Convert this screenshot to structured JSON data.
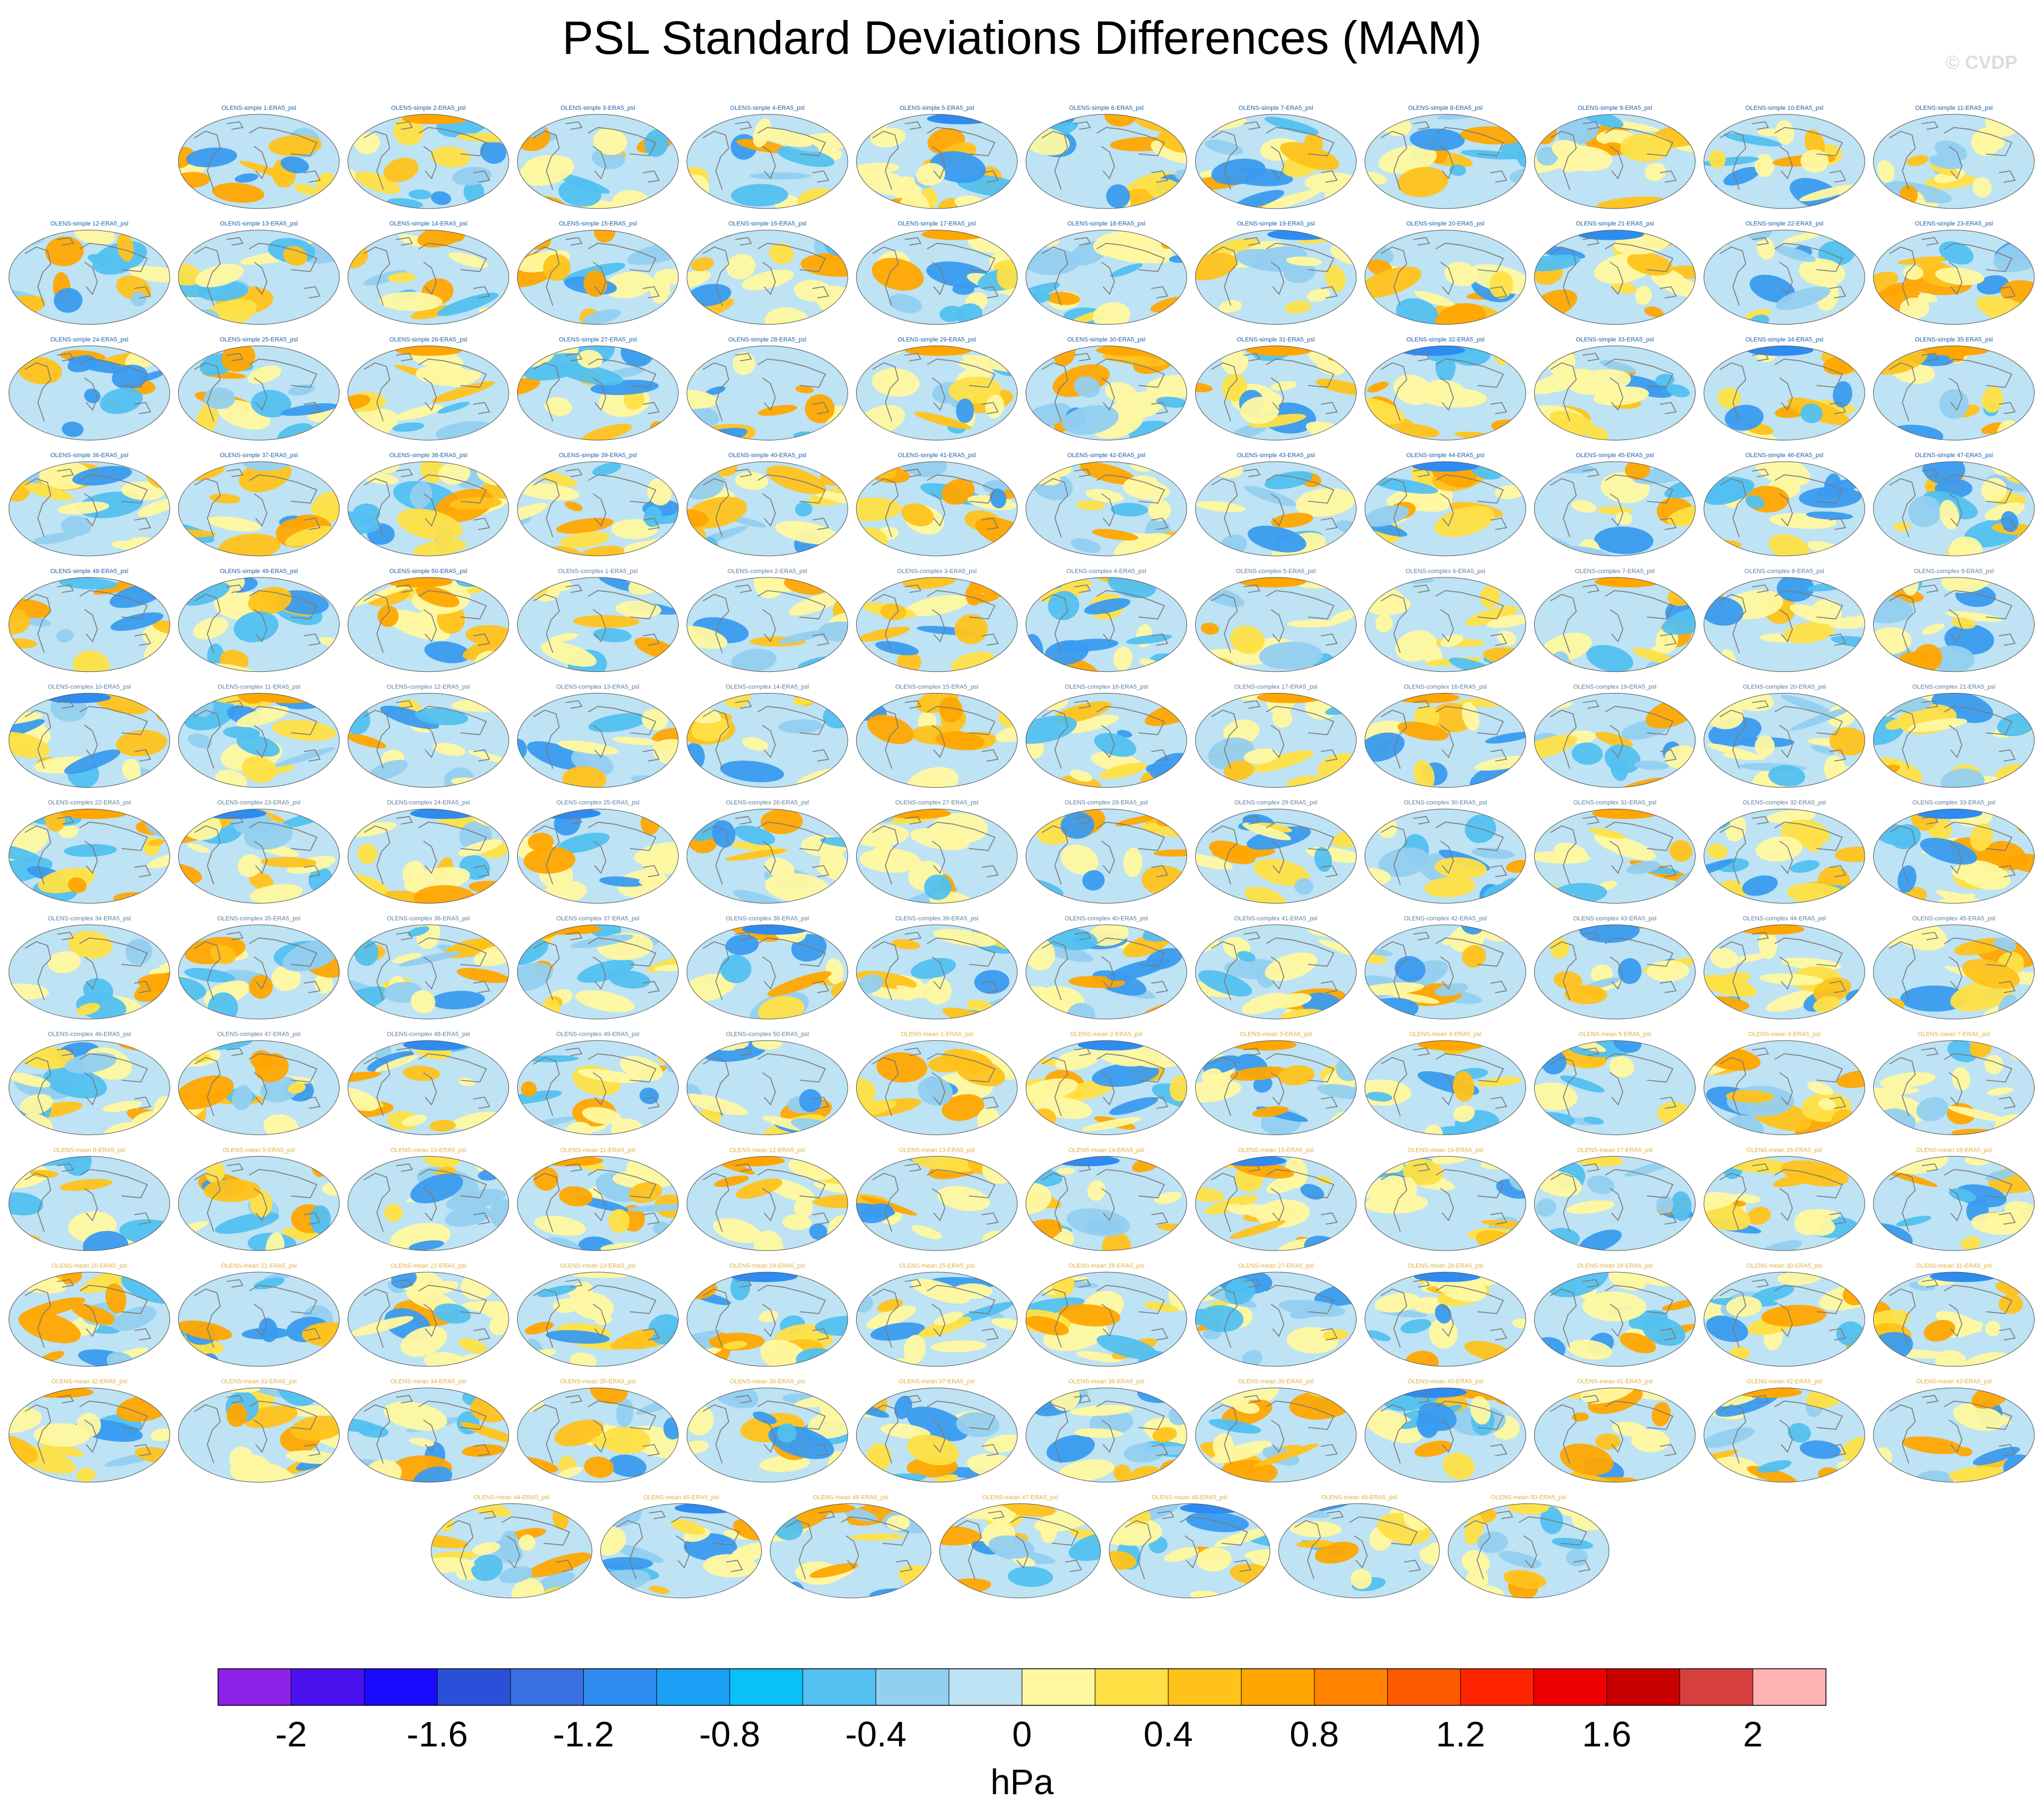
{
  "title": "PSL Standard Deviations Differences (MAM)",
  "watermark": "© CVDP",
  "chart_data": {
    "type": "heatmap",
    "title": "PSL Standard Deviations Differences (MAM)",
    "variable": "PSL",
    "season": "MAM",
    "projection": "global map panels (Robinson-like ellipse)",
    "panel_titles": [
      "OLENS-simple 1-ERA5_psl",
      "OLENS-simple 2-ERA5_psl",
      "OLENS-simple 3-ERA5_psl",
      "OLENS-simple 4-ERA5_psl",
      "OLENS-simple 5-ERA5_psl",
      "OLENS-simple 6-ERA5_psl",
      "OLENS-simple 7-ERA5_psl",
      "OLENS-simple 8-ERA5_psl",
      "OLENS-simple 9-ERA5_psl",
      "OLENS-simple 10-ERA5_psl",
      "OLENS-simple 11-ERA5_psl",
      "OLENS-simple 12-ERA5_psl",
      "OLENS-simple 13-ERA5_psl",
      "OLENS-simple 14-ERA5_psl",
      "OLENS-simple 15-ERA5_psl",
      "OLENS-simple 16-ERA5_psl",
      "OLENS-simple 17-ERA5_psl",
      "OLENS-simple 18-ERA5_psl",
      "OLENS-simple 19-ERA5_psl",
      "OLENS-simple 20-ERA5_psl",
      "OLENS-simple 21-ERA5_psl",
      "OLENS-simple 22-ERA5_psl",
      "OLENS-simple 23-ERA5_psl",
      "OLENS-simple 24-ERA5_psl",
      "OLENS-simple 25-ERA5_psl",
      "OLENS-simple 26-ERA5_psl",
      "OLENS-simple 27-ERA5_psl",
      "OLENS-simple 28-ERA5_psl",
      "OLENS-simple 29-ERA5_psl",
      "OLENS-simple 30-ERA5_psl",
      "OLENS-simple 31-ERA5_psl",
      "OLENS-simple 32-ERA5_psl",
      "OLENS-simple 33-ERA5_psl",
      "OLENS-simple 34-ERA5_psl",
      "OLENS-simple 35-ERA5_psl",
      "OLENS-simple 36-ERA5_psl",
      "OLENS-simple 37-ERA5_psl",
      "OLENS-simple 38-ERA5_psl",
      "OLENS-simple 39-ERA5_psl",
      "OLENS-simple 40-ERA5_psl",
      "OLENS-simple 41-ERA5_psl",
      "OLENS-simple 42-ERA5_psl",
      "OLENS-simple 43-ERA5_psl",
      "OLENS-simple 44-ERA5_psl",
      "OLENS-simple 45-ERA5_psl",
      "OLENS-simple 46-ERA5_psl",
      "OLENS-simple 47-ERA5_psl",
      "OLENS-simple 48-ERA5_psl",
      "OLENS-simple 49-ERA5_psl",
      "OLENS-simple 50-ERA5_psl",
      "OLENS-complex 1-ERA5_psl",
      "OLENS-complex 2-ERA5_psl",
      "OLENS-complex 3-ERA5_psl",
      "OLENS-complex 4-ERA5_psl",
      "OLENS-complex 5-ERA5_psl",
      "OLENS-complex 6-ERA5_psl",
      "OLENS-complex 7-ERA5_psl",
      "OLENS-complex 8-ERA5_psl",
      "OLENS-complex 9-ERA5_psl",
      "OLENS-complex 10-ERA5_psl",
      "OLENS-complex 11-ERA5_psl",
      "OLENS-complex 12-ERA5_psl",
      "OLENS-complex 13-ERA5_psl",
      "OLENS-complex 14-ERA5_psl",
      "OLENS-complex 15-ERA5_psl",
      "OLENS-complex 16-ERA5_psl",
      "OLENS-complex 17-ERA5_psl",
      "OLENS-complex 18-ERA5_psl",
      "OLENS-complex 19-ERA5_psl",
      "OLENS-complex 20-ERA5_psl",
      "OLENS-complex 21-ERA5_psl",
      "OLENS-complex 22-ERA5_psl",
      "OLENS-complex 23-ERA5_psl",
      "OLENS-complex 24-ERA5_psl",
      "OLENS-complex 25-ERA5_psl",
      "OLENS-complex 26-ERA5_psl",
      "OLENS-complex 27-ERA5_psl",
      "OLENS-complex 28-ERA5_psl",
      "OLENS-complex 29-ERA5_psl",
      "OLENS-complex 30-ERA5_psl",
      "OLENS-complex 31-ERA5_psl",
      "OLENS-complex 32-ERA5_psl",
      "OLENS-complex 33-ERA5_psl",
      "OLENS-complex 34-ERA5_psl",
      "OLENS-complex 35-ERA5_psl",
      "OLENS-complex 36-ERA5_psl",
      "OLENS-complex 37-ERA5_psl",
      "OLENS-complex 38-ERA5_psl",
      "OLENS-complex 39-ERA5_psl",
      "OLENS-complex 40-ERA5_psl",
      "OLENS-complex 41-ERA5_psl",
      "OLENS-complex 42-ERA5_psl",
      "OLENS-complex 43-ERA5_psl",
      "OLENS-complex 44-ERA5_psl",
      "OLENS-complex 45-ERA5_psl",
      "OLENS-complex 46-ERA5_psl",
      "OLENS-complex 47-ERA5_psl",
      "OLENS-complex 48-ERA5_psl",
      "OLENS-complex 49-ERA5_psl",
      "OLENS-complex 50-ERA5_psl",
      "OLENS-mean 1-ERA5_psl",
      "OLENS-mean 2-ERA5_psl",
      "OLENS-mean 3-ERA5_psl",
      "OLENS-mean 4-ERA5_psl",
      "OLENS-mean 5-ERA5_psl",
      "OLENS-mean 6-ERA5_psl",
      "OLENS-mean 7-ERA5_psl",
      "OLENS-mean 8-ERA5_psl",
      "OLENS-mean 9-ERA5_psl",
      "OLENS-mean 10-ERA5_psl",
      "OLENS-mean 11-ERA5_psl",
      "OLENS-mean 12-ERA5_psl",
      "OLENS-mean 13-ERA5_psl",
      "OLENS-mean 14-ERA5_psl",
      "OLENS-mean 15-ERA5_psl",
      "OLENS-mean 16-ERA5_psl",
      "OLENS-mean 17-ERA5_psl",
      "OLENS-mean 18-ERA5_psl",
      "OLENS-mean 19-ERA5_psl",
      "OLENS-mean 20-ERA5_psl",
      "OLENS-mean 21-ERA5_psl",
      "OLENS-mean 22-ERA5_psl",
      "OLENS-mean 23-ERA5_psl",
      "OLENS-mean 24-ERA5_psl",
      "OLENS-mean 25-ERA5_psl",
      "OLENS-mean 26-ERA5_psl",
      "OLENS-mean 27-ERA5_psl",
      "OLENS-mean 28-ERA5_psl",
      "OLENS-mean 29-ERA5_psl",
      "OLENS-mean 30-ERA5_psl",
      "OLENS-mean 31-ERA5_psl",
      "OLENS-mean 32-ERA5_psl",
      "OLENS-mean 33-ERA5_psl",
      "OLENS-mean 34-ERA5_psl",
      "OLENS-mean 35-ERA5_psl",
      "OLENS-mean 36-ERA5_psl",
      "OLENS-mean 37-ERA5_psl",
      "OLENS-mean 38-ERA5_psl",
      "OLENS-mean 39-ERA5_psl",
      "OLENS-mean 40-ERA5_psl",
      "OLENS-mean 41-ERA5_psl",
      "OLENS-mean 42-ERA5_psl",
      "OLENS-mean 43-ERA5_psl",
      "OLENS-mean 44-ERA5_psl",
      "OLENS-mean 45-ERA5_psl",
      "OLENS-mean 46-ERA5_psl",
      "OLENS-mean 47-ERA5_psl",
      "OLENS-mean 48-ERA5_psl",
      "OLENS-mean 49-ERA5_psl",
      "OLENS-mean 50-ERA5_psl"
    ],
    "panel_title_colors": {
      "OLENS-simple": "#1f5fa8",
      "OLENS-complex": "#5f7f9f",
      "OLENS-mean": "#e0b040"
    },
    "colorbar": {
      "unit_label": "hPa",
      "level_min": -2.2,
      "level_step": 0.2,
      "colors": [
        "#8b21e6",
        "#4b12f0",
        "#1a0aff",
        "#2b4fd8",
        "#3a6fe2",
        "#2f8bf0",
        "#1aa0f5",
        "#09c0f8",
        "#52c0f0",
        "#93cff0",
        "#bde3f4",
        "#fff8a0",
        "#ffe044",
        "#ffc21a",
        "#ffa600",
        "#ff8200",
        "#ff5a00",
        "#ff2400",
        "#ee0000",
        "#c80000",
        "#d84040",
        "#ffb3b3"
      ],
      "tick_labels": [
        "-2",
        "-1.6",
        "-1.2",
        "-0.8",
        "-0.4",
        "0",
        "0.4",
        "0.8",
        "1.2",
        "1.6",
        "2"
      ]
    }
  }
}
